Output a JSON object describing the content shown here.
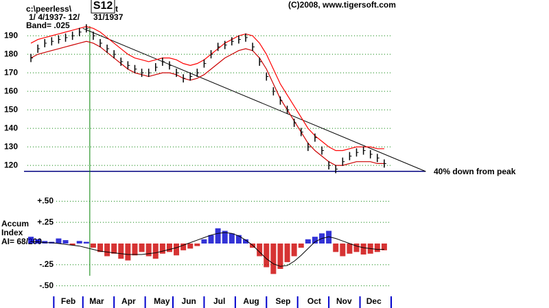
{
  "chart_data": {
    "type": "stock",
    "header": {
      "path_start": "c:\\peerless\\",
      "path_end": "t",
      "dates_start": "1/ 4/1937- 12/",
      "dates_end": "31/1937",
      "band": "Band= .025",
      "signal": "S12",
      "copyright": "(C)2008, www.tigersoft.com"
    },
    "xlim": [
      0,
      52.5
    ],
    "month_ticks": [
      3.8,
      8,
      12.5,
      17,
      21,
      25.5,
      30,
      34.5,
      39,
      43.5,
      48,
      52.5
    ],
    "months": [
      {
        "value": 5.9,
        "label": "Feb"
      },
      {
        "value": 10,
        "label": "Mar"
      },
      {
        "value": 14.6,
        "label": "Apr"
      },
      {
        "value": 19.4,
        "label": "May"
      },
      {
        "value": 23.3,
        "label": "Jun"
      },
      {
        "value": 27.7,
        "label": "Jul"
      },
      {
        "value": 32.3,
        "label": "Aug"
      },
      {
        "value": 36.9,
        "label": "Sep"
      },
      {
        "value": 41.4,
        "label": "Oct"
      },
      {
        "value": 45.7,
        "label": "Nov"
      },
      {
        "value": 50,
        "label": "Dec"
      }
    ],
    "ylim": [
      113,
      198.2
    ],
    "yticks": [
      120,
      130,
      140,
      150,
      160,
      170,
      180,
      190
    ],
    "grid": true,
    "series": [
      {
        "name": "price",
        "color": "#000000",
        "values": [
          178,
          183,
          186,
          187,
          188,
          189,
          190,
          192,
          194,
          190,
          186,
          183,
          180,
          176,
          174,
          172,
          170,
          170,
          173,
          176,
          174,
          170,
          167,
          168,
          170,
          175,
          180,
          184,
          185,
          187,
          188,
          189,
          184,
          176,
          168,
          160,
          155,
          150,
          143,
          138,
          130,
          135,
          128,
          120,
          118,
          122,
          125,
          127,
          128,
          126,
          124,
          121
        ]
      },
      {
        "name": "upper band",
        "color": "#ff0000",
        "values": [
          186,
          188,
          189,
          190,
          191,
          192,
          193,
          194,
          195,
          194,
          192,
          189,
          186,
          183,
          180,
          178,
          177,
          176,
          177,
          178,
          178,
          177,
          175,
          174,
          175,
          177,
          180,
          183,
          186,
          188,
          190,
          191,
          190,
          186,
          180,
          172,
          164,
          158,
          152,
          146,
          140,
          136,
          133,
          130,
          128,
          128,
          129,
          130,
          130,
          130,
          129,
          129
        ]
      },
      {
        "name": "lower band",
        "color": "#cc0000",
        "values": [
          178,
          180,
          181,
          182,
          183,
          184,
          185,
          186,
          187,
          186,
          184,
          181,
          178,
          175,
          172,
          170,
          169,
          168,
          169,
          170,
          170,
          169,
          167,
          166,
          167,
          169,
          172,
          175,
          178,
          180,
          182,
          183,
          182,
          178,
          172,
          164,
          156,
          150,
          144,
          138,
          132,
          128,
          125,
          122,
          120,
          120,
          121,
          122,
          122,
          122,
          121,
          121
        ]
      }
    ],
    "trendline": {
      "x": [
        8,
        57.5
      ],
      "values": [
        194,
        116.7
      ],
      "color": "#000000"
    },
    "signal_x": 9,
    "signal_color": "#008000",
    "peak_line": {
      "value": 116.8,
      "label": "40% down from peak",
      "color": "#000080"
    },
    "accum": {
      "labels": [
        "Accum",
        "Index",
        "AI= 68/200"
      ],
      "ylim": [
        -0.6,
        0.6
      ],
      "yticks": [
        {
          "value": 0.5,
          "label": "+.50"
        },
        {
          "value": 0.25,
          "label": "+.25"
        },
        {
          "value": -0.25,
          "label": "-.25"
        },
        {
          "value": -0.5,
          "label": "-.50"
        }
      ],
      "positive_color": "#0000cc",
      "negative_color": "#cc0000",
      "values": [
        0.08,
        0.05,
        0.03,
        0.02,
        0.06,
        0.04,
        -0.02,
        0.03,
        0.02,
        -0.05,
        -0.1,
        -0.15,
        -0.12,
        -0.18,
        -0.2,
        -0.14,
        -0.1,
        -0.15,
        -0.18,
        -0.12,
        -0.1,
        -0.14,
        -0.08,
        -0.06,
        -0.03,
        0.05,
        0.1,
        0.18,
        0.15,
        0.12,
        0.1,
        0.05,
        -0.05,
        -0.15,
        -0.28,
        -0.36,
        -0.3,
        -0.22,
        -0.15,
        -0.05,
        0.05,
        0.08,
        0.12,
        0.15,
        -0.1,
        -0.15,
        -0.12,
        -0.1,
        -0.13,
        -0.12,
        -0.1,
        -0.08
      ],
      "ma": [
        0.02,
        0.02,
        0.01,
        0.01,
        0.0,
        -0.01,
        -0.02,
        -0.03,
        -0.05,
        -0.07,
        -0.09,
        -0.1,
        -0.11,
        -0.12,
        -0.13,
        -0.13,
        -0.13,
        -0.12,
        -0.11,
        -0.09,
        -0.07,
        -0.05,
        -0.02,
        0.01,
        0.04,
        0.07,
        0.1,
        0.12,
        0.13,
        0.12,
        0.09,
        0.04,
        -0.02,
        -0.1,
        -0.18,
        -0.24,
        -0.27,
        -0.26,
        -0.21,
        -0.14,
        -0.06,
        0.02,
        0.06,
        0.08,
        0.06,
        0.03,
        0.0,
        -0.03,
        -0.05,
        -0.06,
        -0.07,
        -0.07
      ]
    }
  }
}
